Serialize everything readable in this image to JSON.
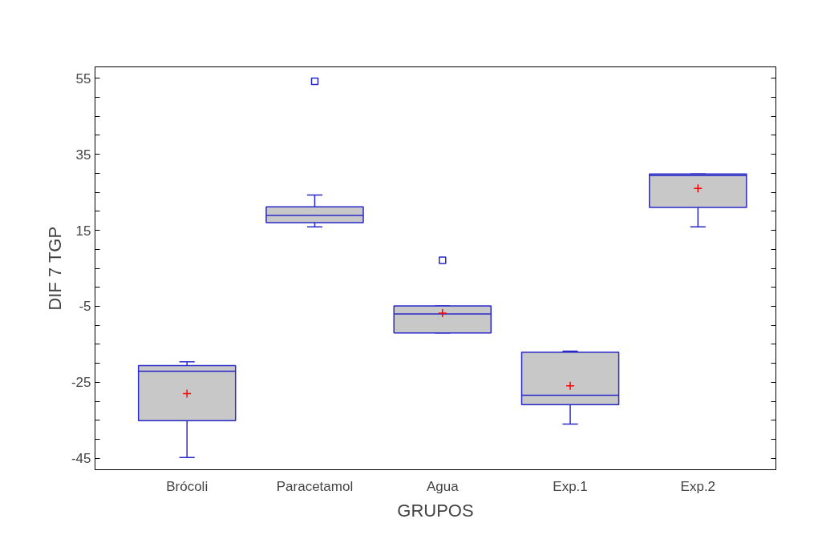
{
  "chart_data": {
    "type": "box",
    "xlabel": "GRUPOS",
    "ylabel": "DIF 7 TGP",
    "categories": [
      "Brócoli",
      "Paracetamol",
      "Agua",
      "Exp.1",
      "Exp.2"
    ],
    "boxes": [
      {
        "low": -44.8,
        "q1": -35.1,
        "median": -22.1,
        "q3": -20.6,
        "high": -19.6,
        "mean": -28.0
      },
      {
        "low": 15.9,
        "q1": 17.0,
        "median": 18.9,
        "q3": 21.2,
        "high": 24.3,
        "outliers": [
          54.2
        ]
      },
      {
        "low": -12.0,
        "q1": -12.0,
        "median": -7.0,
        "q3": -4.9,
        "high": -4.9,
        "mean": -6.8,
        "outliers": [
          7.1
        ]
      },
      {
        "low": -36.0,
        "q1": -30.9,
        "median": -28.4,
        "q3": -17.1,
        "high": -16.8,
        "mean": -25.9
      },
      {
        "low": 15.9,
        "q1": 21.0,
        "median": 29.4,
        "q3": 29.8,
        "high": 29.8,
        "mean": 26.0
      }
    ],
    "color": "#c8c8c8",
    "ylim": [
      -48,
      58
    ],
    "yticks": [
      -45,
      {
        "value": -40,
        "label": null
      },
      {
        "value": -35,
        "label": null
      },
      {
        "value": -30,
        "label": null
      },
      -25,
      {
        "value": -20,
        "label": null
      },
      {
        "value": -15,
        "label": null
      },
      {
        "value": -10,
        "label": null
      },
      -5,
      {
        "value": 0,
        "label": null
      },
      {
        "value": 5,
        "label": null
      },
      {
        "value": 10,
        "label": null
      },
      15,
      {
        "value": 20,
        "label": null
      },
      {
        "value": 25,
        "label": null
      },
      {
        "value": 30,
        "label": null
      },
      35,
      {
        "value": 40,
        "label": null
      },
      {
        "value": 45,
        "label": null
      },
      {
        "value": 50,
        "label": null
      },
      55
    ],
    "grid": false
  }
}
